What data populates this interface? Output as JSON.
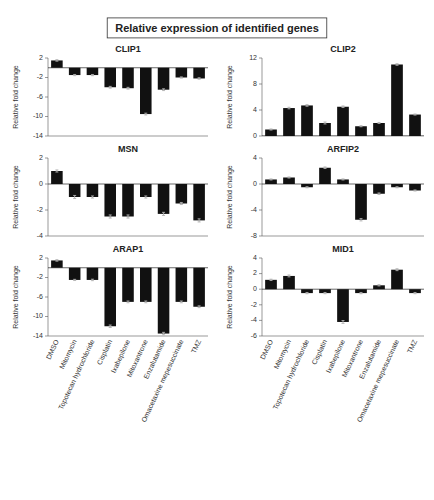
{
  "title": "Relative expression of identified genes",
  "chart_data": [
    {
      "type": "bar",
      "title": "CLIP1",
      "ylabel": "Relative fold change",
      "categories": [
        "DMSO",
        "Mitomycin",
        "Topotecan hydrochloride",
        "Cisplatin",
        "Ixabepilone",
        "Mitoxantrone",
        "Enzalutamide",
        "Omacetaxine mepesuccinate",
        "TMZ"
      ],
      "values": [
        1.5,
        -1.5,
        -1.5,
        -4.0,
        -4.2,
        -9.5,
        -4.5,
        -2.0,
        -2.2
      ],
      "errors": [
        0.15,
        0.12,
        0.12,
        0.18,
        0.18,
        0.18,
        0.18,
        0.12,
        0.15
      ],
      "color": "#111111",
      "ylim": [
        -14,
        2
      ],
      "yticks": [
        2,
        -2,
        -6,
        -10,
        -14
      ],
      "tick_labels": "y"
    },
    {
      "type": "bar",
      "title": "CLIP2",
      "ylabel": "Relative fold change",
      "categories": [
        "DMSO",
        "Mitomycin",
        "Topotecan hydrochloride",
        "Cisplatin",
        "Ixabepilone",
        "Mitoxantrone",
        "Enzalutamide",
        "Omacetaxine mepesuccinate",
        "TMZ"
      ],
      "values": [
        1.0,
        4.3,
        4.7,
        2.0,
        4.5,
        1.5,
        2.0,
        11.0,
        3.3
      ],
      "errors": [
        0.08,
        0.12,
        0.12,
        0.15,
        0.12,
        0.08,
        0.08,
        0.12,
        0.08
      ],
      "color": "#111111",
      "ylim": [
        0,
        12
      ],
      "yticks": [
        0,
        4,
        8,
        12
      ],
      "tick_labels": "y"
    },
    {
      "type": "bar",
      "title": "MSN",
      "ylabel": "Relative fold change",
      "categories": [
        "DMSO",
        "Mitomycin",
        "Topotecan hydrochloride",
        "Cisplatin",
        "Ixabepilone",
        "Mitoxantrone",
        "Enzalutamide",
        "Omacetaxine mepesuccinate",
        "TMZ"
      ],
      "values": [
        1.0,
        -1.0,
        -1.0,
        -2.5,
        -2.5,
        -1.0,
        -2.3,
        -1.5,
        -2.8
      ],
      "errors": [
        0.08,
        0.12,
        0.08,
        0.12,
        0.12,
        0.08,
        0.12,
        0.08,
        0.12
      ],
      "color": "#111111",
      "ylim": [
        -4,
        2
      ],
      "yticks": [
        2,
        0,
        -2,
        -4
      ],
      "tick_labels": "y"
    },
    {
      "type": "bar",
      "title": "ARFIP2",
      "ylabel": "Relative fold change",
      "categories": [
        "DMSO",
        "Mitomycin",
        "Topotecan hydrochloride",
        "Cisplatin",
        "Ixabepilone",
        "Mitoxantrone",
        "Enzalutamide",
        "Omacetaxine mepesuccinate",
        "TMZ"
      ],
      "values": [
        0.7,
        1.0,
        -0.5,
        2.5,
        0.7,
        -5.5,
        -1.5,
        -0.5,
        -1.0
      ],
      "errors": [
        0.08,
        0.08,
        0.08,
        0.12,
        0.08,
        0.18,
        0.12,
        0.08,
        0.08
      ],
      "color": "#111111",
      "ylim": [
        -8,
        4
      ],
      "yticks": [
        4,
        0,
        -4,
        -8
      ],
      "tick_labels": "y"
    },
    {
      "type": "bar",
      "title": "ARAP1",
      "ylabel": "Relative fold change",
      "categories": [
        "DMSO",
        "Mitomycin",
        "Topotecan hydrochloride",
        "Cisplatin",
        "Ixabepilone",
        "Mitoxantrone",
        "Enzalutamide",
        "Omacetaxine mepesuccinate",
        "TMZ"
      ],
      "values": [
        1.5,
        -2.5,
        -2.5,
        -12.0,
        -7.0,
        -7.0,
        -13.5,
        -7.0,
        -8.0
      ],
      "errors": [
        0.15,
        0.12,
        0.15,
        0.25,
        0.18,
        0.18,
        0.25,
        0.18,
        0.18
      ],
      "color": "#111111",
      "ylim": [
        -14,
        2
      ],
      "yticks": [
        2,
        -2,
        -6,
        -10,
        -14
      ]
    },
    {
      "type": "bar",
      "title": "MID1",
      "ylabel": "Relative fold change",
      "categories": [
        "DMSO",
        "Mitomycin",
        "Topotecan hydrochloride",
        "Cisplatin",
        "Ixabepilone",
        "Mitoxantrone",
        "Enzalutamide",
        "Omacetaxine mepesuccinate",
        "TMZ"
      ],
      "values": [
        1.2,
        1.7,
        -0.5,
        -0.5,
        -4.2,
        -0.5,
        0.5,
        2.5,
        -0.5
      ],
      "errors": [
        0.08,
        0.12,
        0.08,
        0.08,
        0.18,
        0.08,
        0.08,
        0.12,
        0.08
      ],
      "color": "#111111",
      "ylim": [
        -6,
        4
      ],
      "yticks": [
        4,
        2,
        0,
        -2,
        -4,
        -6
      ]
    }
  ]
}
